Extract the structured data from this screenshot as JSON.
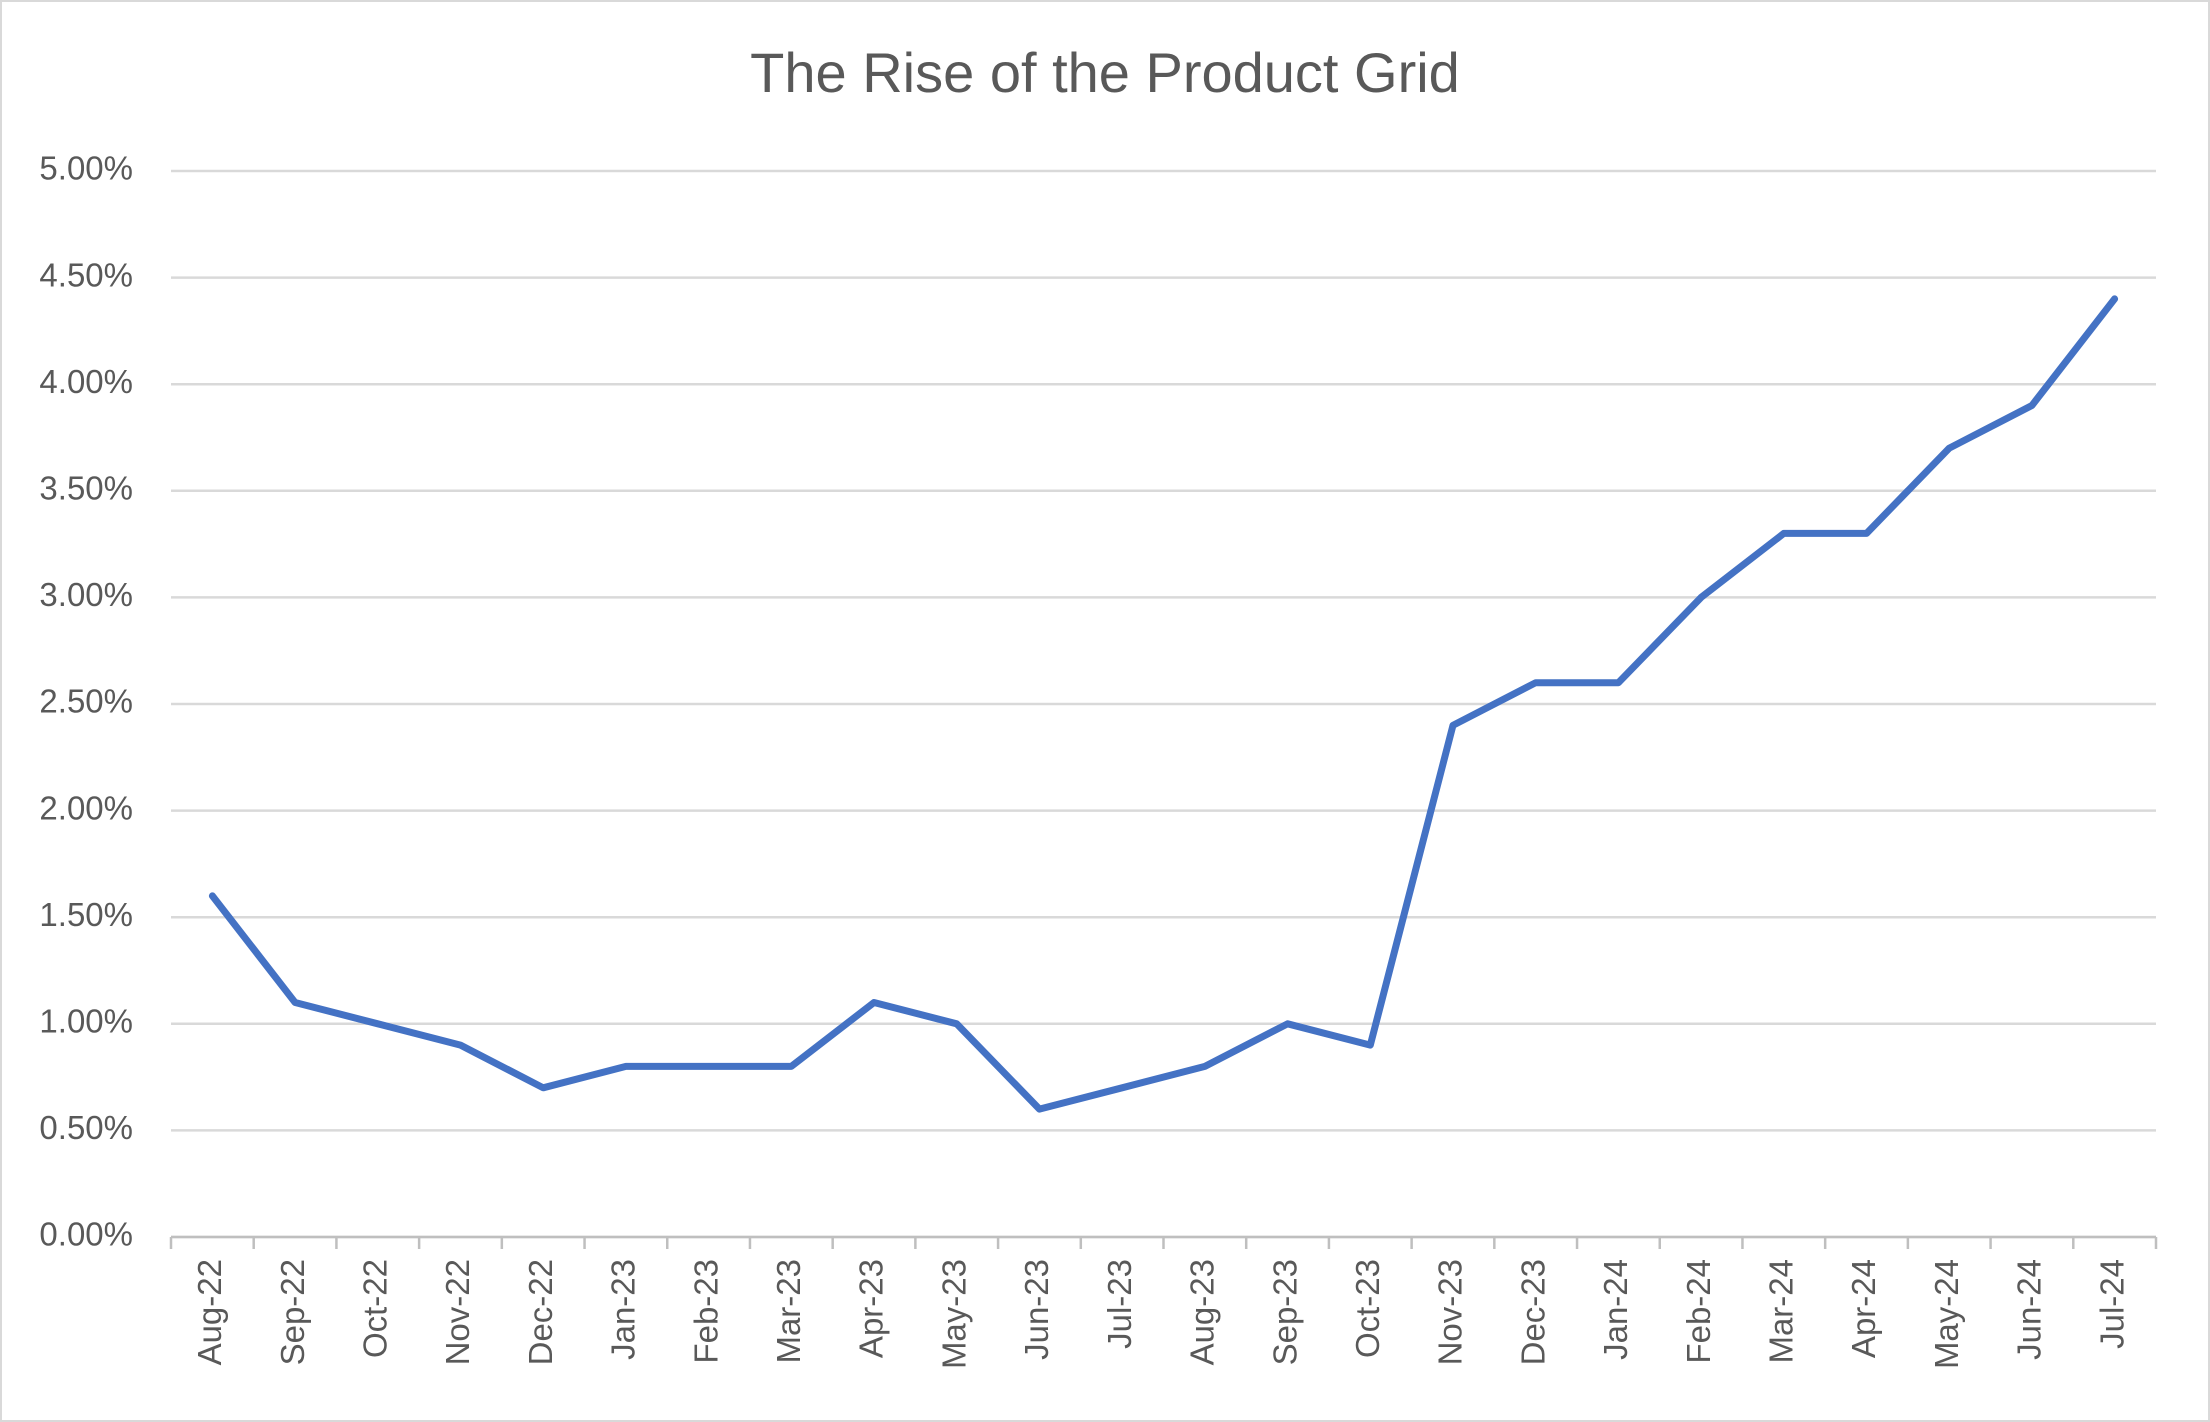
{
  "chart_data": {
    "type": "line",
    "title": "The Rise of the Product Grid",
    "categories": [
      "Aug-22",
      "Sep-22",
      "Oct-22",
      "Nov-22",
      "Dec-22",
      "Jan-23",
      "Feb-23",
      "Mar-23",
      "Apr-23",
      "May-23",
      "Jun-23",
      "Jul-23",
      "Aug-23",
      "Sep-23",
      "Oct-23",
      "Nov-23",
      "Dec-23",
      "Jan-24",
      "Feb-24",
      "Mar-24",
      "Apr-24",
      "May-24",
      "Jun-24",
      "Jul-24"
    ],
    "values": [
      1.6,
      1.1,
      1.0,
      0.9,
      0.7,
      0.8,
      0.8,
      0.8,
      1.1,
      1.0,
      0.6,
      0.7,
      0.8,
      1.0,
      0.9,
      2.4,
      2.6,
      2.6,
      3.0,
      3.3,
      3.3,
      3.7,
      3.9,
      4.4
    ],
    "color": "#4472c4",
    "ylim": [
      0,
      5
    ],
    "yticks": [
      {
        "value": 0,
        "label": "0.00%"
      },
      {
        "value": 0.5,
        "label": "0.50%"
      },
      {
        "value": 1,
        "label": "1.00%"
      },
      {
        "value": 1.5,
        "label": "1.50%"
      },
      {
        "value": 2,
        "label": "2.00%"
      },
      {
        "value": 2.5,
        "label": "2.50%"
      },
      {
        "value": 3,
        "label": "3.00%"
      },
      {
        "value": 3.5,
        "label": "3.50%"
      },
      {
        "value": 4,
        "label": "4.00%"
      },
      {
        "value": 4.5,
        "label": "4.50%"
      },
      {
        "value": 5,
        "label": "5.00%"
      }
    ],
    "grid": true
  }
}
